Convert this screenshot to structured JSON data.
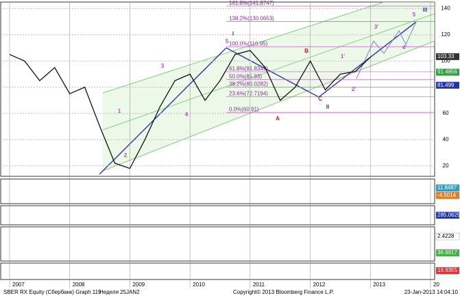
{
  "chart_data": {
    "type": "line",
    "categories": [
      "2007",
      null,
      null,
      null,
      "2008",
      null,
      null,
      null,
      "2009",
      null,
      null,
      null,
      "2010",
      null,
      null,
      null,
      "2011",
      null,
      null,
      null,
      "2012",
      null,
      null,
      null,
      "2013",
      null,
      null,
      null,
      "20"
    ],
    "values": [
      105,
      100,
      85,
      95,
      75,
      80,
      50,
      22,
      18,
      40,
      65,
      85,
      90,
      70,
      85,
      105,
      108,
      95,
      70,
      80,
      100,
      78,
      90,
      92,
      103,
      null,
      null,
      null,
      null
    ],
    "color": "#111111",
    "ylim": [
      12,
      145
    ],
    "yticks": [
      20,
      40,
      60,
      80,
      100,
      120,
      140
    ],
    "grid": true,
    "fib_levels": [
      {
        "value": 141.8747,
        "label": "161.8%(141.8747)"
      },
      {
        "value": 130.0653,
        "label": "138.2%(130.0653)"
      },
      {
        "value": 110.95,
        "label": "100.0%(110.95)"
      },
      {
        "value": 91.8349,
        "label": "61.8%(91.8349)"
      },
      {
        "value": 85.93,
        "label": "50.0%(85.93)"
      },
      {
        "value": 80.0282,
        "label": "38.2%(80.0282)"
      },
      {
        "value": 72.7194,
        "label": "23.6%(72.7194)"
      },
      {
        "value": 60.91,
        "label": "0.0%(60.91)"
      }
    ],
    "price_labels": [
      {
        "value": 103.33,
        "color": "#333333"
      },
      {
        "value": 91.4856,
        "color": "#2e9e3e"
      },
      {
        "value": 81.499,
        "color": "#2233aa"
      }
    ],
    "annotations": [
      {
        "text": "1",
        "color": "#b04cc0"
      },
      {
        "text": "2",
        "color": "#b04cc0"
      },
      {
        "text": "3",
        "color": "#b04cc0"
      },
      {
        "text": "4",
        "color": "#b04cc0"
      },
      {
        "text": "5",
        "color": "#b04cc0"
      },
      {
        "text": "I",
        "color": "#3a3ab0"
      },
      {
        "text": "A",
        "color": "#d01010"
      },
      {
        "text": "B",
        "color": "#d01010"
      },
      {
        "text": "C",
        "color": "#d01010"
      },
      {
        "text": "II",
        "color": "#3a3ab0"
      },
      {
        "text": "1'",
        "color": "#b04cc0"
      },
      {
        "text": "2'",
        "color": "#b04cc0"
      },
      {
        "text": "3'",
        "color": "#b04cc0"
      },
      {
        "text": "4'",
        "color": "#b04cc0"
      },
      {
        "text": "5",
        "color": "#b04cc0"
      },
      {
        "text": "III",
        "color": "#3a3ab0"
      }
    ],
    "panel_labels": [
      {
        "value": 11.8487,
        "color": "#30a0c0"
      },
      {
        "value": -4.5014,
        "color": "#e08020"
      },
      {
        "value": 285.0629,
        "color": "#2233aa"
      },
      {
        "value": 2.4228,
        "color": "#ffffff"
      },
      {
        "value": 36.9917,
        "color": "#40b040"
      },
      {
        "value": 16.9355,
        "color": "#e03030"
      }
    ]
  },
  "footer": {
    "ticker": "SBER RX Equity (Сбербанк) Graph 119",
    "period": "Неделя 25JAN2",
    "copyright": "Copyright© 2013 Bloomberg Finance L.P.",
    "timestamp": "23-Jan-2013 14:04:10"
  }
}
